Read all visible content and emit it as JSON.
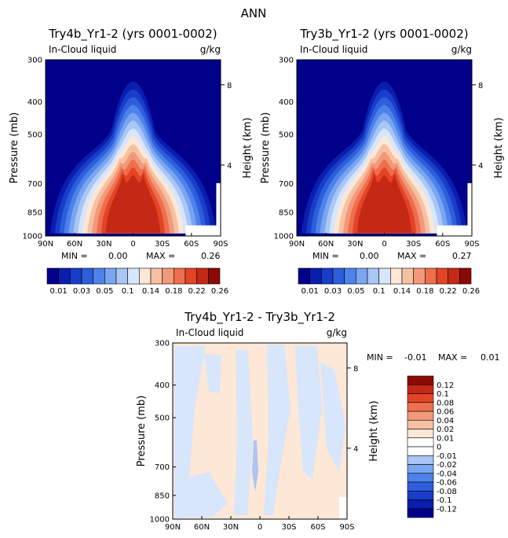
{
  "figure_title": "ANN",
  "chart_data": [
    {
      "type": "heatmap",
      "title": "Try4b_Yr1-2 (yrs 0001-0002)",
      "variable": "In-Cloud liquid",
      "units": "g/kg",
      "ylabel": "Pressure (mb)",
      "y2label": "Height (km)",
      "x_ticks": [
        "90N",
        "60N",
        "30N",
        "0",
        "30S",
        "60S",
        "90S"
      ],
      "y_ticks": [
        "300",
        "400",
        "500",
        "700",
        "850",
        "1000"
      ],
      "y2_ticks": [
        "8",
        "4"
      ],
      "min_label": "MIN =",
      "min": "0.00",
      "max_label": "MAX =",
      "max": "0.26",
      "colorbar_labels": [
        "0.01",
        "0.03",
        "0.05",
        "0.1",
        "0.14",
        "0.18",
        "0.22",
        "0.26"
      ]
    },
    {
      "type": "heatmap",
      "title": "Try3b_Yr1-2 (yrs 0001-0002)",
      "variable": "In-Cloud liquid",
      "units": "g/kg",
      "ylabel": "Pressure (mb)",
      "y2label": "Height (km)",
      "x_ticks": [
        "90N",
        "60N",
        "30N",
        "0",
        "30S",
        "60S",
        "90S"
      ],
      "y_ticks": [
        "300",
        "400",
        "500",
        "700",
        "850",
        "1000"
      ],
      "y2_ticks": [
        "8",
        "4"
      ],
      "min_label": "MIN =",
      "min": "0.00",
      "max_label": "MAX =",
      "max": "0.27",
      "colorbar_labels": [
        "0.01",
        "0.03",
        "0.05",
        "0.1",
        "0.14",
        "0.18",
        "0.22",
        "0.26"
      ]
    },
    {
      "type": "heatmap",
      "title": "Try4b_Yr1-2 - Try3b_Yr1-2",
      "variable": "In-Cloud liquid",
      "units": "g/kg",
      "ylabel": "Pressure (mb)",
      "y2label": "Height (km)",
      "x_ticks": [
        "90N",
        "60N",
        "30N",
        "0",
        "30S",
        "60S",
        "90S"
      ],
      "y_ticks": [
        "300",
        "400",
        "500",
        "700",
        "850",
        "1000"
      ],
      "y2_ticks": [
        "8",
        "4"
      ],
      "min_label": "MIN =",
      "min": "-0.01",
      "max_label": "MAX =",
      "max": "0.01",
      "colorbar_labels": [
        "0.12",
        "0.1",
        "0.08",
        "0.06",
        "0.04",
        "0.02",
        "0.01",
        "0",
        "-0.01",
        "-0.02",
        "-0.04",
        "-0.06",
        "-0.08",
        "-0.1",
        "-0.12"
      ]
    }
  ],
  "colors": {
    "seq": [
      "#00008b",
      "#0a1ead",
      "#1a3dc9",
      "#2d5fdc",
      "#4d82ea",
      "#7aa5f0",
      "#a9c6f5",
      "#d8e6fb",
      "#fde7d6",
      "#f6c1a3",
      "#f2997a",
      "#ee6f4d",
      "#e44426",
      "#c42915",
      "#8b0a05"
    ],
    "diff_pos": "#fde7d6",
    "diff_neg": "#d8e6fb",
    "diff_strong_neg": "#a9c6f5"
  }
}
